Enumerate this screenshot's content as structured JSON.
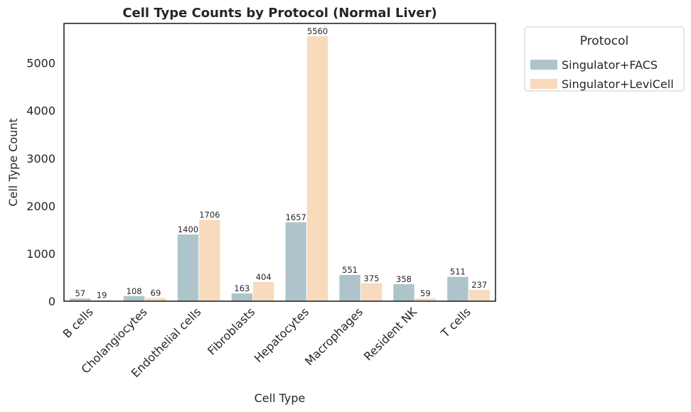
{
  "chart_data": {
    "type": "bar",
    "title": "Cell Type Counts by Protocol (Normal Liver)",
    "xlabel": "Cell Type",
    "ylabel": "Cell Type Count",
    "ylim": [
      0,
      5830
    ],
    "yticks": [
      0,
      1000,
      2000,
      3000,
      4000,
      5000
    ],
    "categories": [
      "B cells",
      "Cholangiocytes",
      "Endothelial cells",
      "Fibroblasts",
      "Hepatocytes",
      "Macrophages",
      "Resident NK",
      "T cells"
    ],
    "series": [
      {
        "name": "Singulator+FACS",
        "color": "#aec4cb",
        "values": [
          57,
          108,
          1400,
          163,
          1657,
          551,
          358,
          511
        ]
      },
      {
        "name": "Singulator+LeviCell",
        "color": "#f8dabd",
        "values": [
          19,
          69,
          1706,
          404,
          5560,
          375,
          59,
          237
        ]
      }
    ],
    "legend": {
      "title": "Protocol",
      "placement": "outside-top-right"
    },
    "grid": false
  }
}
